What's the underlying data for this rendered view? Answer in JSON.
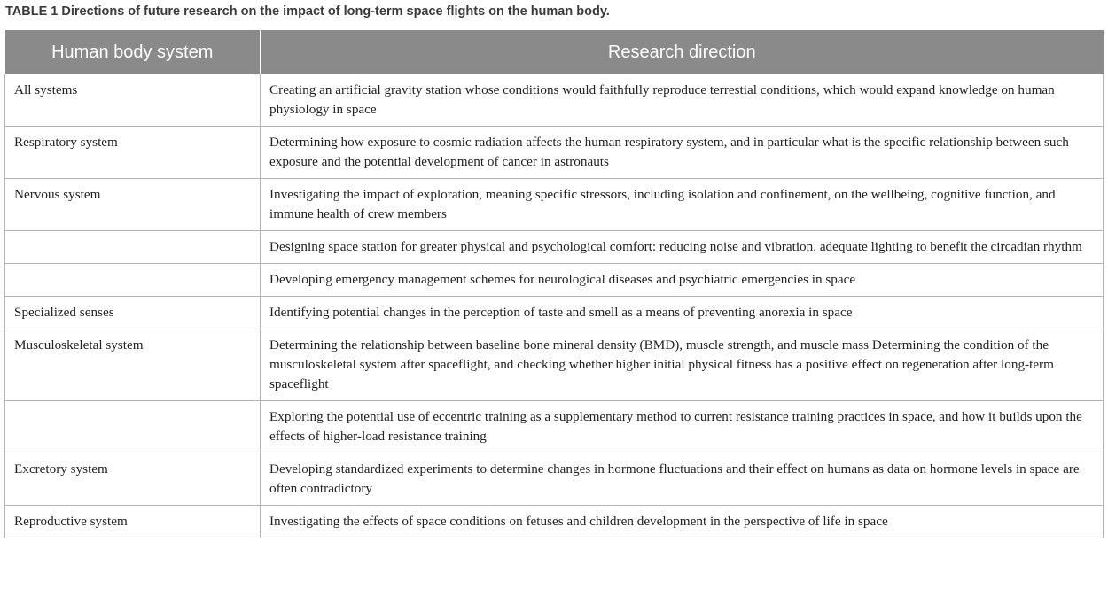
{
  "caption": "TABLE 1 Directions of future research on the impact of long-term space flights on the human body.",
  "headers": {
    "system": "Human body system",
    "direction": "Research direction"
  },
  "rows": [
    {
      "system": "All systems",
      "direction": "Creating an artificial gravity station whose conditions would faithfully reproduce terrestial conditions, which would expand knowledge on human physiology in space"
    },
    {
      "system": "Respiratory system",
      "direction": "Determining how exposure to cosmic radiation affects the human respiratory system, and in particular what is the specific relationship between such exposure and the potential development of cancer in astronauts"
    },
    {
      "system": "Nervous system",
      "direction": "Investigating the impact of exploration, meaning specific stressors, including isolation and confinement, on the wellbeing, cognitive function, and immune health of crew members"
    },
    {
      "system": "",
      "direction": "Designing space station for greater physical and psychological comfort: reducing noise and vibration, adequate lighting to benefit the circadian rhythm"
    },
    {
      "system": "",
      "direction": "Developing emergency management schemes for neurological diseases and psychiatric emergencies in space"
    },
    {
      "system": "Specialized senses",
      "direction": "Identifying potential changes in the perception of taste and smell as a means of preventing anorexia in space"
    },
    {
      "system": "Musculoskeletal system",
      "direction": "Determining the relationship between baseline bone mineral density (BMD), muscle strength, and muscle mass Determining the condition of the musculoskeletal system after spaceflight, and checking whether higher initial physical fitness has a positive effect on regeneration after long-term spaceflight"
    },
    {
      "system": "",
      "direction": "Exploring the potential use of eccentric training as a supplementary method to current resistance training practices in space, and how it builds upon the effects of higher-load resistance training"
    },
    {
      "system": "Excretory system",
      "direction": "Developing standardized experiments to determine changes in hormone fluctuations and their effect on humans as data on hormone levels in space are often contradictory"
    },
    {
      "system": "Reproductive system",
      "direction": "Investigating the effects of space conditions on fetuses and children development in the perspective of life in space"
    }
  ]
}
